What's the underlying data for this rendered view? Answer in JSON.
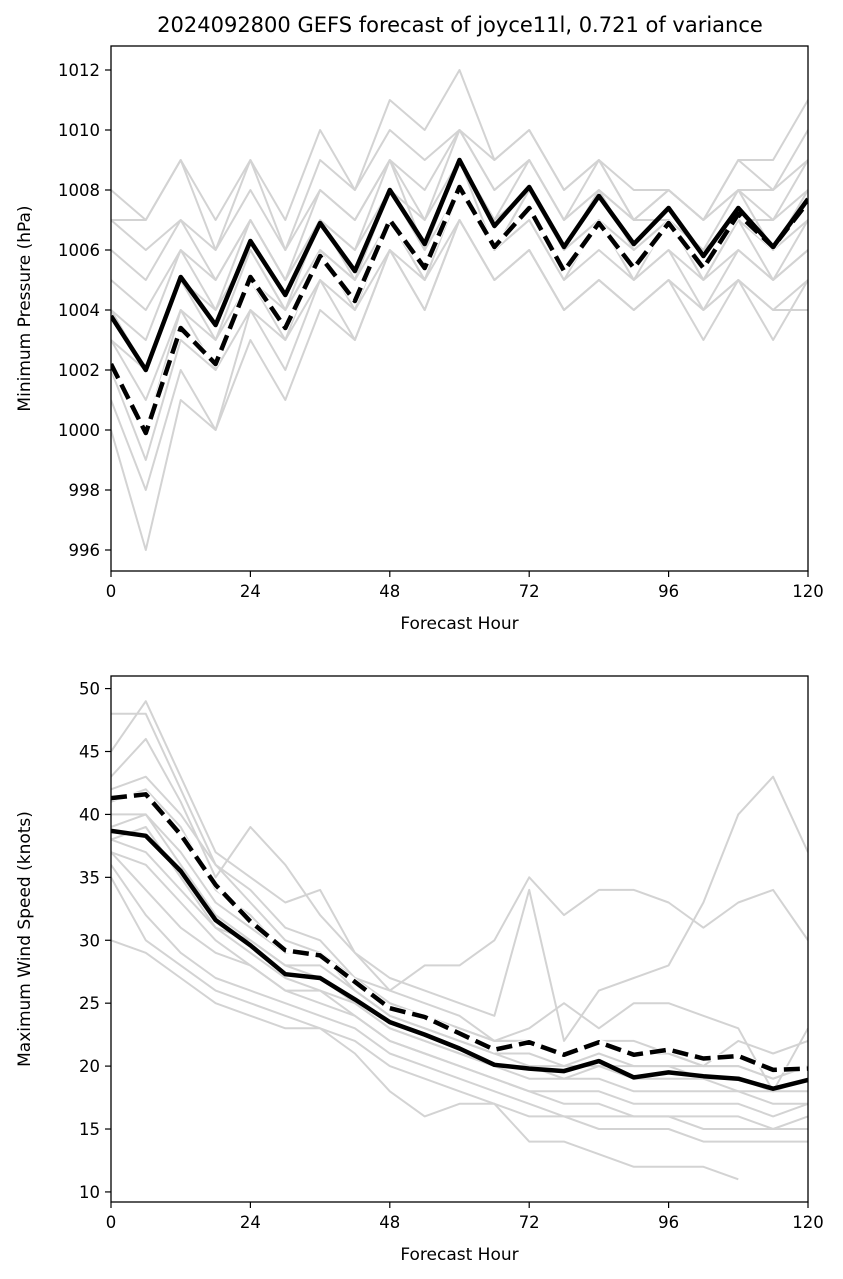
{
  "title": "2024092800 GEFS forecast of joyce11l, 0.721 of variance",
  "colors": {
    "member": "#d3d3d3",
    "mean": "#000000",
    "axis": "#000000"
  },
  "chart_data": [
    {
      "type": "line",
      "xlabel": "Forecast Hour",
      "ylabel": "Minimum Pressure (hPa)",
      "xlim": [
        0,
        120
      ],
      "ylim": [
        995.3,
        1012.8
      ],
      "xticks": [
        0,
        24,
        48,
        72,
        96,
        120
      ],
      "yticks": [
        996,
        998,
        1000,
        1002,
        1004,
        1006,
        1008,
        1010,
        1012
      ],
      "x": [
        0,
        6,
        12,
        18,
        24,
        30,
        36,
        42,
        48,
        54,
        60,
        66,
        72,
        78,
        84,
        90,
        96,
        102,
        108,
        114,
        120
      ],
      "mean_solid": [
        1003.8,
        1002.0,
        1005.1,
        1003.5,
        1006.3,
        1004.5,
        1006.9,
        1005.3,
        1008.0,
        1006.2,
        1009.0,
        1006.8,
        1008.1,
        1006.1,
        1007.8,
        1006.2,
        1007.4,
        1005.8,
        1007.4,
        1006.1,
        1007.7
      ],
      "mean_dashed": [
        1002.2,
        999.9,
        1003.4,
        1002.2,
        1005.1,
        1003.4,
        1005.8,
        1004.3,
        1007.0,
        1005.4,
        1008.1,
        1006.1,
        1007.4,
        1005.3,
        1006.9,
        1005.4,
        1006.9,
        1005.4,
        1007.2,
        1006.1,
        1007.6
      ],
      "members": [
        [
          1008,
          1007,
          1009,
          1007,
          1009,
          1007,
          1010,
          1008,
          1011,
          1010,
          1012,
          1009,
          1010,
          1008,
          1009,
          1008,
          1008,
          1007,
          1009,
          1009,
          1011
        ],
        [
          1007,
          1007,
          1009,
          1006,
          1009,
          1006,
          1009,
          1008,
          1010,
          1009,
          1010,
          1009,
          1010,
          1008,
          1009,
          1007,
          1008,
          1007,
          1009,
          1008,
          1010
        ],
        [
          1007,
          1006,
          1007,
          1006,
          1008,
          1006,
          1008,
          1007,
          1009,
          1008,
          1010,
          1008,
          1009,
          1007,
          1009,
          1007,
          1008,
          1007,
          1008,
          1008,
          1009
        ],
        [
          1006,
          1005,
          1007,
          1005,
          1007,
          1005,
          1008,
          1007,
          1009,
          1007,
          1010,
          1008,
          1009,
          1007,
          1008,
          1007,
          1008,
          1007,
          1008,
          1007,
          1009
        ],
        [
          1005,
          1004,
          1006,
          1005,
          1007,
          1005,
          1007,
          1006,
          1008,
          1007,
          1009,
          1007,
          1009,
          1007,
          1008,
          1007,
          1007,
          1006,
          1008,
          1006,
          1008
        ],
        [
          1004,
          1003,
          1006,
          1004,
          1007,
          1005,
          1007,
          1006,
          1009,
          1006,
          1009,
          1007,
          1008,
          1006,
          1008,
          1006,
          1007,
          1006,
          1007,
          1007,
          1008
        ],
        [
          1004,
          1002,
          1005,
          1004,
          1006,
          1004,
          1007,
          1005,
          1008,
          1006,
          1009,
          1006,
          1008,
          1006,
          1007,
          1006,
          1007,
          1005,
          1007,
          1006,
          1007
        ],
        [
          1003,
          1002,
          1005,
          1003,
          1006,
          1004,
          1006,
          1005,
          1008,
          1006,
          1008,
          1006,
          1008,
          1006,
          1007,
          1005,
          1007,
          1005,
          1007,
          1005,
          1007
        ],
        [
          1003,
          1001,
          1004,
          1003,
          1005,
          1004,
          1006,
          1005,
          1007,
          1005,
          1008,
          1006,
          1007,
          1005,
          1007,
          1005,
          1006,
          1005,
          1006,
          1005,
          1006
        ],
        [
          1002,
          1000,
          1004,
          1002,
          1005,
          1003,
          1006,
          1004,
          1007,
          1005,
          1008,
          1006,
          1007,
          1005,
          1006,
          1005,
          1006,
          1004,
          1006,
          1005,
          1006
        ],
        [
          1002,
          999,
          1003,
          1002,
          1004,
          1003,
          1005,
          1004,
          1006,
          1005,
          1007,
          1005,
          1006,
          1004,
          1005,
          1004,
          1005,
          1004,
          1005,
          1004,
          1005
        ],
        [
          1001,
          998,
          1002,
          1000,
          1004,
          1002,
          1005,
          1003,
          1006,
          1004,
          1007,
          1005,
          1006,
          1004,
          1005,
          1004,
          1005,
          1003,
          1005,
          1003,
          1005
        ],
        [
          1000,
          996,
          1001,
          1000,
          1003,
          1001,
          1004,
          1003,
          1006,
          1004,
          1007,
          1005,
          1006,
          1004,
          1005,
          1004,
          1005,
          1004,
          1005,
          1004,
          1004
        ]
      ]
    },
    {
      "type": "line",
      "xlabel": "Forecast Hour",
      "ylabel": "Maximum Wind Speed (knots)",
      "xlim": [
        0,
        120
      ],
      "ylim": [
        9.2,
        51
      ],
      "xticks": [
        0,
        24,
        48,
        72,
        96,
        120
      ],
      "yticks": [
        10,
        15,
        20,
        25,
        30,
        35,
        40,
        45,
        50
      ],
      "x": [
        0,
        6,
        12,
        18,
        24,
        30,
        36,
        42,
        48,
        54,
        60,
        66,
        72,
        78,
        84,
        90,
        96,
        102,
        108,
        114,
        120
      ],
      "mean_solid": [
        38.7,
        38.3,
        35.5,
        31.6,
        29.6,
        27.3,
        27.0,
        25.3,
        23.5,
        22.5,
        21.4,
        20.1,
        19.8,
        19.6,
        20.4,
        19.1,
        19.5,
        19.2,
        19.0,
        18.2,
        18.9
      ],
      "mean_dashed": [
        41.3,
        41.6,
        38.4,
        34.4,
        31.5,
        29.2,
        28.8,
        26.7,
        24.6,
        23.9,
        22.6,
        21.3,
        21.9,
        20.9,
        21.9,
        20.9,
        21.3,
        20.6,
        20.8,
        19.7,
        19.8
      ],
      "members": [
        [
          48,
          48,
          42,
          36,
          34,
          31,
          30,
          27,
          26,
          25,
          24,
          22,
          22,
          21,
          22,
          21,
          21,
          20,
          20,
          19,
          20
        ],
        [
          45,
          49,
          43,
          37,
          35,
          33,
          34,
          29,
          26,
          28,
          28,
          30,
          35,
          32,
          34,
          34,
          33,
          31,
          33,
          34,
          30
        ],
        [
          43,
          46,
          41,
          35,
          39,
          36,
          32,
          29,
          27,
          26,
          25,
          24,
          34,
          22,
          26,
          27,
          28,
          33,
          40,
          43,
          37
        ],
        [
          42,
          43,
          40,
          36,
          33,
          30,
          29,
          27,
          25,
          24,
          23,
          22,
          23,
          25,
          23,
          25,
          25,
          24,
          23,
          18,
          23
        ],
        [
          41,
          42,
          39,
          34,
          32,
          29,
          29,
          27,
          25,
          24,
          23,
          22,
          22,
          21,
          22,
          22,
          21,
          20,
          22,
          21,
          22
        ],
        [
          40,
          40,
          37,
          33,
          31,
          29,
          29,
          26,
          24,
          23,
          22,
          21,
          21,
          20,
          21,
          20,
          20,
          20,
          20,
          19,
          20
        ],
        [
          39,
          40,
          36,
          32,
          30,
          28,
          28,
          26,
          24,
          23,
          22,
          21,
          20,
          20,
          20,
          20,
          20,
          19,
          19,
          18,
          19
        ],
        [
          38,
          39,
          35,
          31,
          30,
          28,
          27,
          25,
          23,
          22,
          21,
          20,
          20,
          19,
          20,
          19,
          19,
          19,
          18,
          18,
          18
        ],
        [
          38,
          37,
          34,
          31,
          29,
          27,
          26,
          25,
          23,
          22,
          21,
          20,
          19,
          19,
          19,
          18,
          18,
          18,
          18,
          17,
          17
        ],
        [
          37,
          36,
          33,
          30,
          28,
          26,
          26,
          24,
          22,
          21,
          20,
          19,
          18,
          18,
          18,
          17,
          17,
          17,
          17,
          16,
          17
        ],
        [
          37,
          34,
          31,
          29,
          28,
          26,
          25,
          24,
          22,
          21,
          20,
          19,
          18,
          17,
          17,
          16,
          16,
          16,
          16,
          15,
          16
        ],
        [
          36,
          32,
          29,
          27,
          26,
          25,
          24,
          23,
          21,
          20,
          19,
          18,
          17,
          16,
          16,
          16,
          16,
          15,
          15,
          15,
          15
        ],
        [
          35,
          30,
          28,
          26,
          25,
          24,
          23,
          22,
          20,
          19,
          18,
          17,
          16,
          16,
          15,
          15,
          15,
          14,
          14,
          14,
          14
        ],
        [
          30,
          29,
          27,
          25,
          24,
          23,
          23,
          21,
          18,
          16,
          17,
          17,
          14,
          14,
          13,
          12,
          12,
          12,
          11,
          null,
          null
        ]
      ]
    }
  ]
}
